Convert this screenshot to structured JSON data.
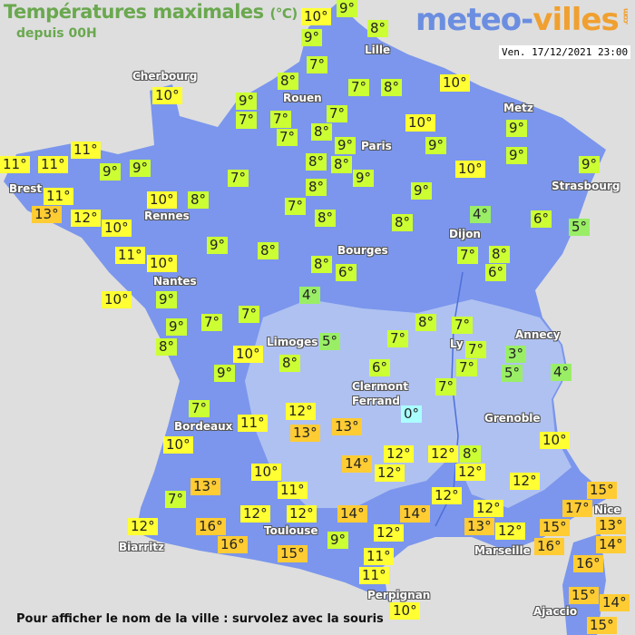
{
  "header": {
    "title": "Températures maximales",
    "unit": "(°C)",
    "subtitle": "depuis 00H",
    "logo_main": "meteo-",
    "logo_accent": "villes",
    "logo_tld": ".com",
    "datetime": "Ven. 17/12/2021 23:00"
  },
  "colors": {
    "background": "#dedede",
    "land": "#7b96ec",
    "land_highland": "#c4d0f2",
    "cold_0": "#aaffff",
    "cool_3_5": "#99ee66",
    "mild_6_9": "#ccff33",
    "warm_10_12": "#ffff33",
    "hot_13_plus": "#ffcc33"
  },
  "cities": [
    "Lille",
    "Cherbourg",
    "Rouen",
    "Metz",
    "Paris",
    "Brest",
    "Strasbourg",
    "Rennes",
    "Dijon",
    "Bourges",
    "Nantes",
    "Annecy",
    "Limoges",
    "Ly",
    "Clermont",
    "Ferrand",
    "Grenoble",
    "Bordeaux",
    "Nice",
    "Toulouse",
    "Biarritz",
    "Marseille",
    "Perpignan",
    "Ajaccio"
  ],
  "temperatures": [
    "10°",
    "9°",
    "8°",
    "9°",
    "7°",
    "8°",
    "7°",
    "8°",
    "10°",
    "10°",
    "9°",
    "7°",
    "7°",
    "7°",
    "7°",
    "8°",
    "10°",
    "9°",
    "9°",
    "9°",
    "9°",
    "11°",
    "11°",
    "11°",
    "11°",
    "9°",
    "9°",
    "7°",
    "8°",
    "8°",
    "9°",
    "10°",
    "9°",
    "10°",
    "8°",
    "8°",
    "9°",
    "13°",
    "7°",
    "8°",
    "12°",
    "10°",
    "8°",
    "4°",
    "6°",
    "5°",
    "9°",
    "8°",
    "11°",
    "10°",
    "7°",
    "8°",
    "8°",
    "6°",
    "6°",
    "10°",
    "9°",
    "4°",
    "7°",
    "7°",
    "9°",
    "8°",
    "5°",
    "8°",
    "7°",
    "7°",
    "7°",
    "3°",
    "10°",
    "8°",
    "5°",
    "7°",
    "9°",
    "4°",
    "6°",
    "7°",
    "7°",
    "12°",
    "0°",
    "11°",
    "13°",
    "13°",
    "10°",
    "10°",
    "12°",
    "12°",
    "8°",
    "14°",
    "12°",
    "12°",
    "10°",
    "13°",
    "12°",
    "11°",
    "12°",
    "15°",
    "7°",
    "17°",
    "12°",
    "12°",
    "12°",
    "14°",
    "14°",
    "15°",
    "13°",
    "13°",
    "12°",
    "12°",
    "16°",
    "12°",
    "16°",
    "16°",
    "9°",
    "14°",
    "16°",
    "15°",
    "11°",
    "11°",
    "10°",
    "15°",
    "14°",
    "15°"
  ],
  "footer": "Pour afficher le nom de la ville : survolez avec la souris"
}
